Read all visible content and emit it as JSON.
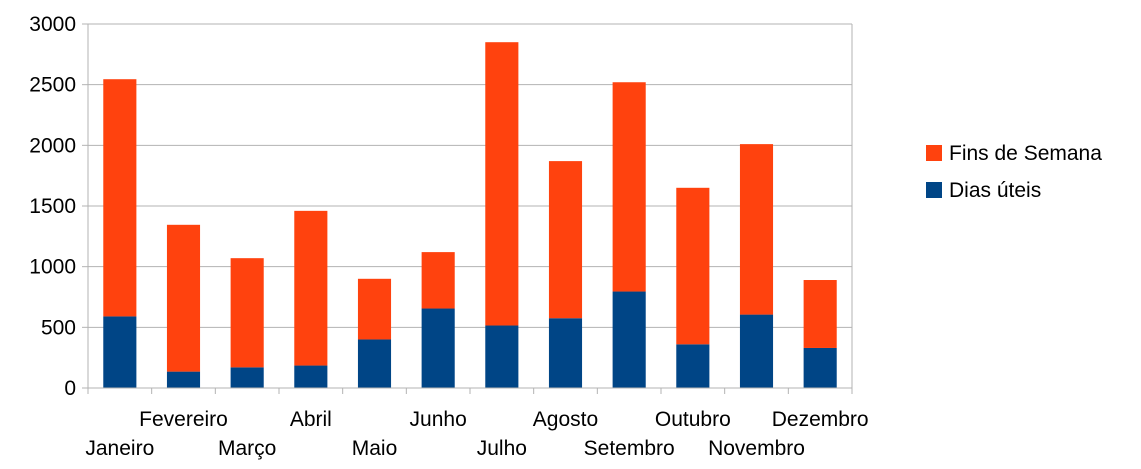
{
  "chart_data": {
    "type": "bar",
    "stacked": true,
    "title": "",
    "xlabel": "",
    "ylabel": "",
    "ylim": [
      0,
      3000
    ],
    "yticks": [
      0,
      500,
      1000,
      1500,
      2000,
      2500,
      3000
    ],
    "grid": true,
    "legend_position": "right",
    "categories": [
      "Janeiro",
      "Fevereiro",
      "Março",
      "Abril",
      "Maio",
      "Junho",
      "Julho",
      "Agosto",
      "Setembro",
      "Outubro",
      "Novembro",
      "Dezembro"
    ],
    "series": [
      {
        "name": "Dias úteis",
        "color": "#004586",
        "values": [
          590,
          135,
          170,
          185,
          400,
          655,
          515,
          575,
          795,
          360,
          605,
          330
        ]
      },
      {
        "name": "Fins de Semana",
        "color": "#ff420e",
        "values": [
          1955,
          1210,
          900,
          1275,
          500,
          465,
          2335,
          1295,
          1725,
          1290,
          1405,
          560
        ]
      }
    ],
    "legend": [
      {
        "name": "Fins de Semana",
        "color": "#ff420e"
      },
      {
        "name": "Dias úteis",
        "color": "#004586"
      }
    ]
  }
}
